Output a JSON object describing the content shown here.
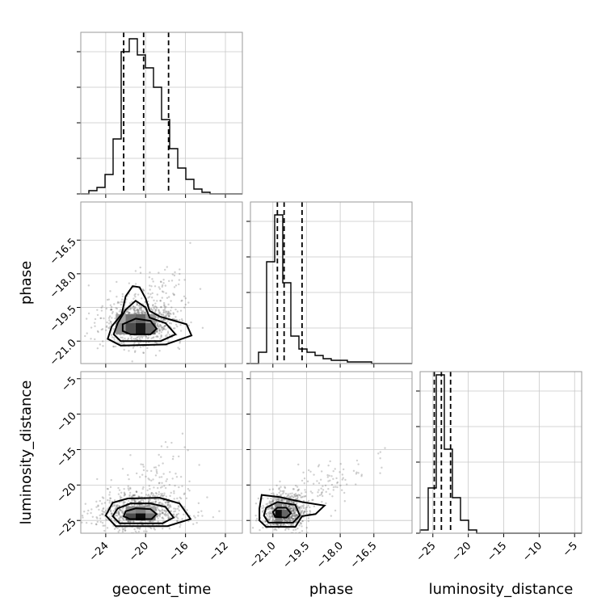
{
  "chart_data": {
    "type": "corner",
    "parameters": [
      "geocent_time",
      "phase",
      "luminosity_distance"
    ],
    "axis_labels": {
      "x": [
        "geocent_time",
        "phase",
        "luminosity_distance"
      ],
      "y": [
        "phase",
        "luminosity_distance"
      ]
    },
    "ranges": {
      "geocent_time": [
        -26.5,
        -10.3
      ],
      "phase": [
        -22.0,
        -14.8
      ],
      "luminosity_distance": [
        -26.8,
        -4.0
      ]
    },
    "ticks": {
      "geocent_time": [
        -24,
        -20,
        -16,
        -12
      ],
      "phase": [
        -21.0,
        -19.5,
        -18.0,
        -16.5
      ],
      "luminosity_distance": [
        -25,
        -20,
        -15,
        -10,
        -5
      ]
    },
    "tick_labels": {
      "geocent_time": [
        "−24",
        "−20",
        "−16",
        "−12"
      ],
      "phase": [
        "−21.0",
        "−19.5",
        "−18.0",
        "−16.5"
      ],
      "luminosity_distance": [
        "−25",
        "−20",
        "−15",
        "−10",
        "−5"
      ]
    },
    "histograms": {
      "geocent_time": {
        "bin_edges": [
          -26.5,
          -25.69,
          -24.88,
          -24.07,
          -23.26,
          -22.45,
          -21.64,
          -20.83,
          -20.02,
          -19.21,
          -18.4,
          -17.59,
          -16.78,
          -15.97,
          -15.16,
          -14.35,
          -13.54,
          -12.73,
          -11.92,
          -11.11,
          -10.3
        ],
        "counts": [
          0,
          2,
          4,
          12,
          34,
          88,
          96,
          86,
          78,
          66,
          46,
          28,
          16,
          9,
          3,
          1,
          0,
          0,
          0,
          0
        ],
        "quantiles": [
          -22.2,
          -20.2,
          -17.7
        ]
      },
      "phase": {
        "bin_edges": [
          -22.0,
          -21.64,
          -21.28,
          -20.92,
          -20.56,
          -20.2,
          -19.84,
          -19.48,
          -19.12,
          -18.76,
          -18.4,
          -18.04,
          -17.68,
          -17.32,
          -16.96,
          -16.6,
          -16.24,
          -15.88,
          -15.52,
          -15.16,
          -14.8
        ],
        "counts": [
          0,
          7,
          63,
          92,
          50,
          17,
          9,
          7,
          5,
          3,
          2,
          2,
          1,
          1,
          1,
          0,
          0,
          0,
          0,
          0
        ],
        "quantiles": [
          -20.8,
          -20.5,
          -19.7
        ]
      },
      "luminosity_distance": {
        "bin_edges": [
          -26.8,
          -25.66,
          -24.52,
          -23.38,
          -22.24,
          -21.1,
          -19.96,
          -18.82,
          -17.68,
          -16.54,
          -15.4,
          -14.26,
          -13.12,
          -11.98,
          -10.84,
          -9.7,
          -8.56,
          -7.42,
          -6.28,
          -5.14,
          -4.0
        ],
        "counts": [
          2,
          28,
          98,
          52,
          22,
          8,
          2,
          0,
          0,
          0,
          0,
          0,
          0,
          0,
          0,
          0,
          0,
          0,
          0,
          0
        ],
        "quantiles": [
          -24.8,
          -23.8,
          -22.5
        ]
      }
    },
    "hist_ylim": [
      0,
      100
    ],
    "hist_ticks": [
      0,
      22,
      44,
      66,
      88
    ],
    "joint": [
      {
        "x": "geocent_time",
        "y": "phase",
        "center": [
          -20.5,
          -20.2
        ],
        "spread": [
          1.9,
          0.55
        ],
        "density_cells": [
          {
            "x": [
              -23,
              -22
            ],
            "y": [
              -20.7,
              -20.2
            ],
            "shade": 0.45
          },
          {
            "x": [
              -22,
              -21
            ],
            "y": [
              -20.7,
              -20.2
            ],
            "shade": 0.7
          },
          {
            "x": [
              -21,
              -20
            ],
            "y": [
              -20.7,
              -20.2
            ],
            "shade": 0.9
          },
          {
            "x": [
              -20,
              -19
            ],
            "y": [
              -20.7,
              -20.2
            ],
            "shade": 0.6
          },
          {
            "x": [
              -23,
              -22
            ],
            "y": [
              -20.2,
              -19.8
            ],
            "shade": 0.35
          },
          {
            "x": [
              -22,
              -21
            ],
            "y": [
              -20.2,
              -19.8
            ],
            "shade": 0.55
          },
          {
            "x": [
              -21,
              -20
            ],
            "y": [
              -20.2,
              -19.8
            ],
            "shade": 0.6
          },
          {
            "x": [
              -20,
              -19
            ],
            "y": [
              -20.2,
              -19.8
            ],
            "shade": 0.4
          }
        ],
        "contours": [
          [
            [
              -21.5,
              -20.7
            ],
            [
              -19.5,
              -20.7
            ],
            [
              -18.9,
              -20.45
            ],
            [
              -19.5,
              -20.1
            ],
            [
              -21,
              -20.0
            ],
            [
              -22.3,
              -20.25
            ],
            [
              -22.3,
              -20.55
            ]
          ],
          [
            [
              -22.5,
              -21.0
            ],
            [
              -18.5,
              -21.0
            ],
            [
              -17.0,
              -20.7
            ],
            [
              -18.0,
              -20.2
            ],
            [
              -19.6,
              -19.95
            ],
            [
              -20.0,
              -19.5
            ],
            [
              -21.0,
              -19.2
            ],
            [
              -22.0,
              -19.6
            ],
            [
              -22.8,
              -20.2
            ],
            [
              -23.2,
              -20.7
            ]
          ],
          [
            [
              -22.5,
              -21.2
            ],
            [
              -18.0,
              -21.15
            ],
            [
              -15.4,
              -20.75
            ],
            [
              -15.9,
              -20.25
            ],
            [
              -18.6,
              -19.9
            ],
            [
              -19.6,
              -19.65
            ],
            [
              -20.0,
              -19.1
            ],
            [
              -20.6,
              -18.6
            ],
            [
              -21.3,
              -18.55
            ],
            [
              -22.0,
              -19.0
            ],
            [
              -22.4,
              -19.8
            ],
            [
              -23.4,
              -20.35
            ],
            [
              -23.8,
              -20.9
            ]
          ]
        ]
      },
      {
        "x": "geocent_time",
        "y": "luminosity_distance",
        "center": [
          -20.5,
          -23.8
        ],
        "spread": [
          2.2,
          1.3
        ],
        "density_cells": [
          {
            "x": [
              -22,
              -21
            ],
            "y": [
              -25,
              -24
            ],
            "shade": 0.7
          },
          {
            "x": [
              -21,
              -20
            ],
            "y": [
              -25,
              -24
            ],
            "shade": 0.95
          },
          {
            "x": [
              -20,
              -19
            ],
            "y": [
              -25,
              -24
            ],
            "shade": 0.55
          },
          {
            "x": [
              -22,
              -21
            ],
            "y": [
              -24,
              -23
            ],
            "shade": 0.45
          },
          {
            "x": [
              -21,
              -20
            ],
            "y": [
              -24,
              -23
            ],
            "shade": 0.5
          },
          {
            "x": [
              -20,
              -19
            ],
            "y": [
              -24,
              -23
            ],
            "shade": 0.35
          }
        ],
        "contours": [
          [
            [
              -21.6,
              -24.8
            ],
            [
              -19.4,
              -24.8
            ],
            [
              -18.9,
              -24.1
            ],
            [
              -19.5,
              -23.4
            ],
            [
              -21.0,
              -23.3
            ],
            [
              -22.0,
              -23.7
            ],
            [
              -22.2,
              -24.4
            ]
          ],
          [
            [
              -22.6,
              -25.4
            ],
            [
              -18.3,
              -25.4
            ],
            [
              -17.2,
              -24.6
            ],
            [
              -18.0,
              -23.1
            ],
            [
              -19.5,
              -22.6
            ],
            [
              -21.5,
              -22.6
            ],
            [
              -22.8,
              -23.3
            ],
            [
              -23.3,
              -24.4
            ]
          ],
          [
            [
              -23.0,
              -25.8
            ],
            [
              -17.8,
              -25.8
            ],
            [
              -15.5,
              -24.8
            ],
            [
              -16.6,
              -22.6
            ],
            [
              -18.6,
              -21.8
            ],
            [
              -21.8,
              -21.9
            ],
            [
              -23.3,
              -22.5
            ],
            [
              -24.0,
              -24.3
            ]
          ]
        ]
      },
      {
        "x": "phase",
        "y": "luminosity_distance",
        "center": [
          -20.5,
          -23.8
        ],
        "spread": [
          0.45,
          1.3
        ],
        "density_cells": [
          {
            "x": [
              -20.9,
              -20.6
            ],
            "y": [
              -24.5,
              -23.5
            ],
            "shade": 0.95
          },
          {
            "x": [
              -20.6,
              -20.3
            ],
            "y": [
              -24.5,
              -23.5
            ],
            "shade": 0.6
          },
          {
            "x": [
              -20.9,
              -20.6
            ],
            "y": [
              -25.5,
              -24.5
            ],
            "shade": 0.5
          },
          {
            "x": [
              -20.9,
              -20.6
            ],
            "y": [
              -23.5,
              -22.5
            ],
            "shade": 0.45
          }
        ],
        "contours": [
          [
            [
              -20.9,
              -24.5
            ],
            [
              -20.4,
              -24.6
            ],
            [
              -20.2,
              -24.0
            ],
            [
              -20.4,
              -23.2
            ],
            [
              -20.8,
              -23.2
            ],
            [
              -21.0,
              -23.8
            ]
          ],
          [
            [
              -21.2,
              -25.3
            ],
            [
              -20.1,
              -25.3
            ],
            [
              -19.8,
              -24.3
            ],
            [
              -20.0,
              -22.8
            ],
            [
              -20.8,
              -22.4
            ],
            [
              -21.3,
              -23.2
            ],
            [
              -21.4,
              -24.3
            ]
          ],
          [
            [
              -21.3,
              -25.9
            ],
            [
              -20.0,
              -25.9
            ],
            [
              -19.7,
              -24.4
            ],
            [
              -19.1,
              -24.1
            ],
            [
              -18.7,
              -22.9
            ],
            [
              -19.7,
              -22.4
            ],
            [
              -20.7,
              -21.7
            ],
            [
              -21.5,
              -21.4
            ],
            [
              -21.6,
              -23.3
            ],
            [
              -21.6,
              -25.0
            ]
          ]
        ]
      }
    ]
  }
}
